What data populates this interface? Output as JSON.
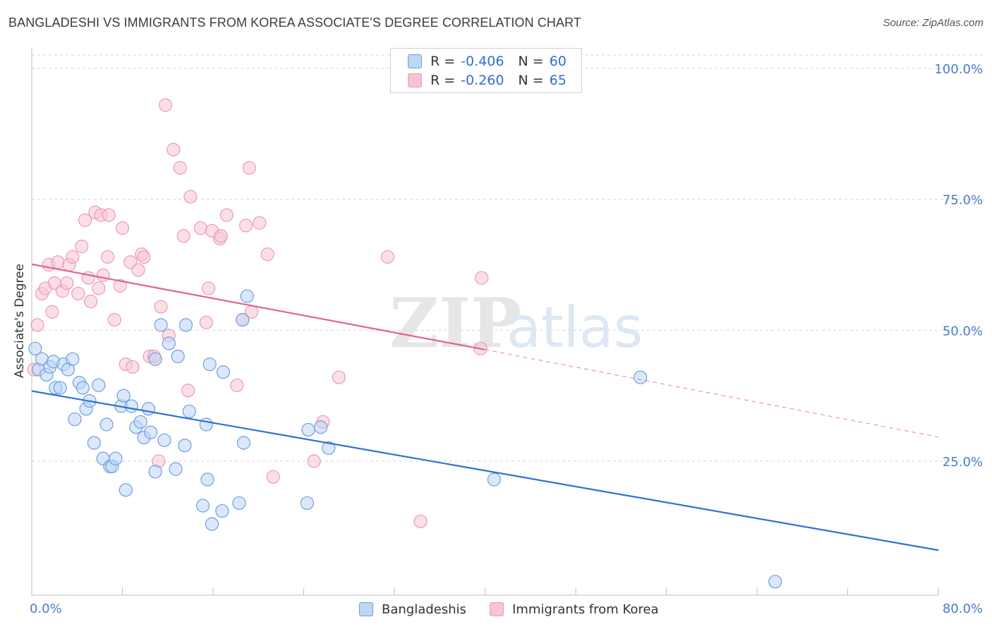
{
  "title": "BANGLADESHI VS IMMIGRANTS FROM KOREA ASSOCIATE'S DEGREE CORRELATION CHART",
  "source": "Source: ZipAtlas.com",
  "legend": {
    "row1": {
      "r_label": "R =",
      "r_value": "-0.406",
      "n_label": "N =",
      "n_value": "60"
    },
    "row2": {
      "r_label": "R =",
      "r_value": "-0.260",
      "n_label": "N =",
      "n_value": "65"
    }
  },
  "colors": {
    "blue_fill": "#bcd6f5",
    "blue_stroke": "#6f9fe0",
    "blue_line": "#2f72d0",
    "pink_fill": "#f7c4d3",
    "pink_stroke": "#ec9ab3",
    "pink_line": "#e0648f",
    "grid": "#d6d6d6",
    "tick_text": "#4a7cc9"
  },
  "chart_data": {
    "type": "scatter",
    "title": "BANGLADESHI VS IMMIGRANTS FROM KOREA ASSOCIATE'S DEGREE CORRELATION CHART",
    "xlabel": "",
    "ylabel": "Associate's Degree",
    "xlim": [
      0,
      80
    ],
    "ylim": [
      0,
      105
    ],
    "x_tick_labels": [
      "0.0%",
      "80.0%"
    ],
    "y_tick_labels": [
      "100.0%",
      "75.0%",
      "50.0%",
      "25.0%"
    ],
    "y_ticks": [
      100,
      75,
      50,
      25
    ],
    "grid": true,
    "legend_placement": "bottom",
    "series": [
      {
        "name": "Bangladeshis",
        "color": "#6f9fe0",
        "points": [
          [
            0.3,
            46.5
          ],
          [
            0.6,
            42.5
          ],
          [
            0.9,
            44.5
          ],
          [
            1.3,
            41.5
          ],
          [
            1.6,
            43
          ],
          [
            1.9,
            44
          ],
          [
            2.1,
            39
          ],
          [
            2.5,
            39
          ],
          [
            2.8,
            43.5
          ],
          [
            3.2,
            42.5
          ],
          [
            3.6,
            44.5
          ],
          [
            3.8,
            33
          ],
          [
            4.2,
            40
          ],
          [
            4.5,
            39
          ],
          [
            4.8,
            35
          ],
          [
            5.1,
            36.5
          ],
          [
            5.5,
            28.5
          ],
          [
            5.9,
            39.5
          ],
          [
            6.3,
            25.5
          ],
          [
            6.6,
            32
          ],
          [
            6.9,
            24
          ],
          [
            7.1,
            24
          ],
          [
            7.4,
            25.5
          ],
          [
            7.9,
            35.5
          ],
          [
            8.1,
            37.5
          ],
          [
            8.3,
            19.5
          ],
          [
            8.8,
            35.5
          ],
          [
            9.2,
            31.5
          ],
          [
            9.6,
            32.5
          ],
          [
            9.9,
            29.5
          ],
          [
            10.3,
            35
          ],
          [
            10.5,
            30.5
          ],
          [
            10.9,
            44.5
          ],
          [
            10.9,
            23
          ],
          [
            11.4,
            51
          ],
          [
            11.7,
            29
          ],
          [
            12.1,
            47.5
          ],
          [
            12.7,
            23.5
          ],
          [
            12.9,
            45
          ],
          [
            13.5,
            28
          ],
          [
            13.6,
            51
          ],
          [
            13.9,
            34.5
          ],
          [
            15.1,
            16.5
          ],
          [
            15.4,
            32
          ],
          [
            15.5,
            21.5
          ],
          [
            15.7,
            43.5
          ],
          [
            15.9,
            13
          ],
          [
            16.8,
            15.5
          ],
          [
            16.9,
            42
          ],
          [
            18.3,
            17
          ],
          [
            18.7,
            28.5
          ],
          [
            18.6,
            52
          ],
          [
            19.0,
            56.5
          ],
          [
            24.3,
            17
          ],
          [
            24.4,
            31
          ],
          [
            25.5,
            31.5
          ],
          [
            26.2,
            27.5
          ],
          [
            40.8,
            21.5
          ],
          [
            53.7,
            41
          ],
          [
            65.6,
            2
          ]
        ]
      },
      {
        "name": "Immigrants from Korea",
        "color": "#ec9ab3",
        "points": [
          [
            0.2,
            42.5
          ],
          [
            0.5,
            51
          ],
          [
            0.9,
            57
          ],
          [
            1.2,
            58
          ],
          [
            1.5,
            62.5
          ],
          [
            1.8,
            53.5
          ],
          [
            2.0,
            59
          ],
          [
            2.3,
            63
          ],
          [
            2.7,
            57.5
          ],
          [
            3.1,
            59
          ],
          [
            3.3,
            62.5
          ],
          [
            3.6,
            64
          ],
          [
            4.1,
            57
          ],
          [
            4.4,
            66
          ],
          [
            4.7,
            71
          ],
          [
            5.0,
            60
          ],
          [
            5.2,
            55.5
          ],
          [
            5.6,
            72.5
          ],
          [
            5.9,
            58
          ],
          [
            6.1,
            72
          ],
          [
            6.3,
            60.5
          ],
          [
            6.7,
            64
          ],
          [
            6.8,
            72
          ],
          [
            7.3,
            52
          ],
          [
            7.8,
            58.5
          ],
          [
            8.0,
            69.5
          ],
          [
            8.3,
            43.5
          ],
          [
            8.7,
            63
          ],
          [
            8.9,
            43
          ],
          [
            9.4,
            61.5
          ],
          [
            9.7,
            64.5
          ],
          [
            9.9,
            64
          ],
          [
            10.4,
            45
          ],
          [
            10.8,
            45
          ],
          [
            11.2,
            25
          ],
          [
            11.4,
            54.5
          ],
          [
            11.8,
            93
          ],
          [
            12.1,
            49
          ],
          [
            12.5,
            84.5
          ],
          [
            13.1,
            81
          ],
          [
            13.4,
            68
          ],
          [
            13.8,
            38.5
          ],
          [
            14.0,
            75.5
          ],
          [
            14.9,
            69.5
          ],
          [
            15.4,
            51.5
          ],
          [
            15.6,
            58
          ],
          [
            15.9,
            69
          ],
          [
            16.6,
            67.5
          ],
          [
            16.7,
            68
          ],
          [
            17.2,
            72
          ],
          [
            18.1,
            39.5
          ],
          [
            18.6,
            52
          ],
          [
            18.9,
            70
          ],
          [
            19.2,
            81
          ],
          [
            19.4,
            53.5
          ],
          [
            20.1,
            70.5
          ],
          [
            20.8,
            64.5
          ],
          [
            21.3,
            22
          ],
          [
            24.9,
            25
          ],
          [
            25.7,
            32.5
          ],
          [
            27.1,
            41
          ],
          [
            31.4,
            64
          ],
          [
            34.3,
            13.5
          ],
          [
            39.7,
            60
          ],
          [
            39.6,
            46.5
          ]
        ]
      }
    ],
    "trend_lines": [
      {
        "series": "Bangladeshis",
        "x": [
          0,
          80
        ],
        "y": [
          38.4,
          8.0
        ]
      },
      {
        "series": "Immigrants from Korea",
        "x": [
          0,
          40
        ],
        "y": [
          62.6,
          46.3
        ],
        "dashed_extension": {
          "x": [
            40,
            80
          ],
          "y": [
            46.3,
            29.6
          ]
        }
      }
    ]
  }
}
